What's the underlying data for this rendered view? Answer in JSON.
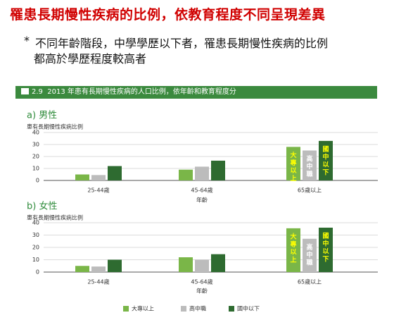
{
  "slide": {
    "title": "罹患長期慢性疾病的比例，依教育程度不同呈現差異",
    "bullet": "*",
    "note_line1": "不同年齡階段，中學學歷以下者，罹患長期慢性疾病的比例",
    "note_line2": "都高於學歷程度較高者"
  },
  "figure": {
    "number": "2.9",
    "caption": "2013 年患有長期慢性疾病的人口比例，依年齡和教育程度分",
    "accent_color": "#3b8a3e"
  },
  "chart_data": [
    {
      "type": "bar",
      "subtitle": "a) 男性",
      "ylabel": "患有長期慢性疾病比例",
      "xlabel": "年齡",
      "ylim": [
        0,
        40
      ],
      "yticks": [
        0,
        10,
        20,
        30,
        40
      ],
      "grid": true,
      "categories": [
        "25-44歲",
        "45-64歲",
        "65歲以上"
      ],
      "series": [
        {
          "name": "大專以上",
          "values": [
            5,
            9,
            28
          ],
          "color": "#7ab648"
        },
        {
          "name": "高中職",
          "values": [
            4.5,
            11.5,
            25
          ],
          "color": "#bcbcbc"
        },
        {
          "name": "國中以下",
          "values": [
            12,
            16.5,
            33
          ],
          "color": "#2e6b30"
        }
      ],
      "bar_annotations": [
        "大專以上",
        "高中職",
        "國中以下"
      ]
    },
    {
      "type": "bar",
      "subtitle": "b) 女性",
      "ylabel": "患有長期慢性疾病比例",
      "xlabel": "年齡",
      "ylim": [
        0,
        40
      ],
      "yticks": [
        0,
        10,
        20,
        30,
        40
      ],
      "grid": true,
      "categories": [
        "25-44歲",
        "45-64歲",
        "65歲以上"
      ],
      "series": [
        {
          "name": "大專以上",
          "values": [
            5,
            12,
            35.5
          ],
          "color": "#7ab648"
        },
        {
          "name": "高中職",
          "values": [
            4.5,
            10,
            27
          ],
          "color": "#bcbcbc"
        },
        {
          "name": "國中以下",
          "values": [
            10,
            14.5,
            36
          ],
          "color": "#2e6b30"
        }
      ],
      "bar_annotations": [
        "大專以上",
        "高中職",
        "國中以下"
      ]
    }
  ],
  "legend": {
    "placement": "bottom",
    "items": [
      {
        "name": "大專以上",
        "color": "#7ab648"
      },
      {
        "name": "高中職",
        "color": "#bcbcbc"
      },
      {
        "name": "國中以下",
        "color": "#2e6b30"
      }
    ]
  }
}
